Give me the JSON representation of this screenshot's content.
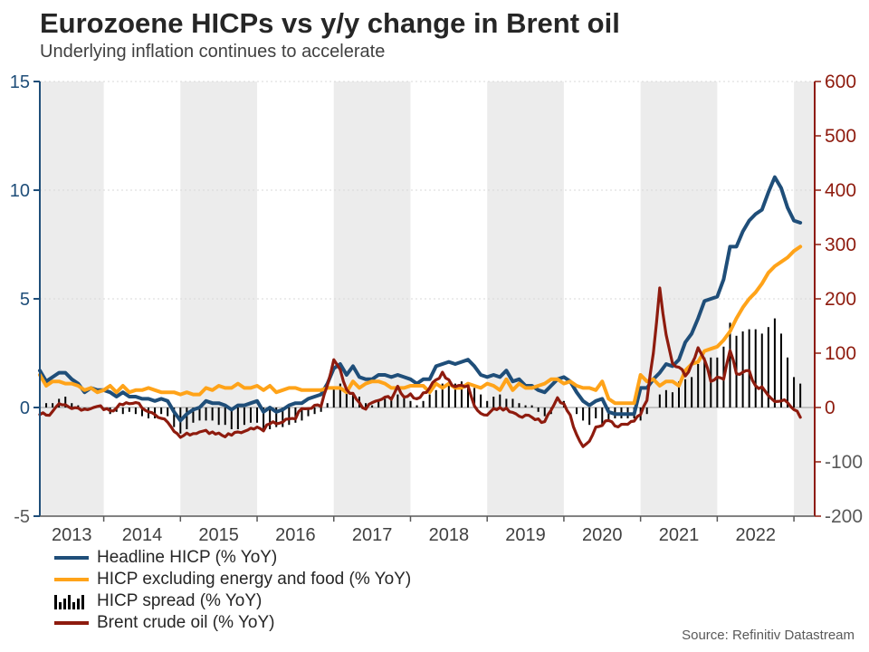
{
  "header": {
    "title": "Eurozoene HICPs vs y/y change in Brent oil",
    "subtitle": "Underlying inflation continues to accelerate"
  },
  "footer": {
    "source": "Source: Refinitiv Datastream"
  },
  "style": {
    "headline_blue": "#1F4E79",
    "core_orange": "#FFA319",
    "spread_black": "#000000",
    "brent_red": "#8E1B0E",
    "band_color": "#ECECEC",
    "grid_color": "#D9D9D9",
    "zero_line_color": "#999999",
    "x_axis_color": "#595959",
    "negative_label_color": "#595959",
    "year_label_color": "#404040"
  },
  "left_axis": {
    "ticks": [
      15,
      10,
      5,
      0,
      -5
    ],
    "color": "#1F4E79"
  },
  "right_axis": {
    "ticks": [
      600,
      500,
      400,
      300,
      200,
      100,
      0,
      -100,
      -200
    ],
    "color": "#8E1B0E"
  },
  "x_axis": {
    "year_labels": [
      "2013",
      "2014",
      "2015",
      "2016",
      "2017",
      "2018",
      "2019",
      "2020",
      "2021",
      "2022"
    ],
    "gray_band_years": [
      2013,
      2015,
      2017,
      2019,
      2021,
      2023
    ]
  },
  "legend": {
    "items": [
      {
        "type": "line",
        "color": "#1F4E79",
        "label": "Headline HICP (% YoY)"
      },
      {
        "type": "line",
        "color": "#FFA319",
        "label": "HICP excluding energy and food (% YoY)"
      },
      {
        "type": "bars",
        "color": "#000000",
        "label": "HICP spread (% YoY)"
      },
      {
        "type": "line",
        "color": "#8E1B0E",
        "label": "Brent crude oil (% YoY)"
      }
    ]
  },
  "chart_data": {
    "type": "line",
    "title": "Eurozoene HICPs vs y/y change in Brent oil",
    "x_unit": "month",
    "x_start": "2013-03",
    "x_end": "2023-02",
    "left_axis_range": [
      -5,
      15
    ],
    "right_axis_range": [
      -200,
      600
    ],
    "grid_left_values": [
      5,
      10,
      15
    ],
    "series": [
      {
        "name": "Headline HICP (% YoY)",
        "axis": "left",
        "type": "line",
        "color": "#1F4E79",
        "values": [
          1.7,
          1.2,
          1.4,
          1.6,
          1.6,
          1.3,
          1.1,
          0.7,
          0.9,
          0.8,
          0.8,
          0.7,
          0.5,
          0.7,
          0.5,
          0.5,
          0.4,
          0.4,
          0.3,
          0.4,
          0.3,
          -0.2,
          -0.6,
          -0.3,
          -0.1,
          0.0,
          0.3,
          0.2,
          0.2,
          0.1,
          -0.1,
          0.1,
          0.1,
          0.2,
          0.3,
          -0.2,
          0.0,
          -0.2,
          -0.1,
          0.1,
          0.2,
          0.2,
          0.4,
          0.5,
          0.6,
          1.1,
          1.8,
          2.0,
          1.5,
          1.9,
          1.4,
          1.3,
          1.3,
          1.5,
          1.5,
          1.4,
          1.5,
          1.4,
          1.3,
          1.1,
          1.3,
          1.3,
          1.9,
          2.0,
          2.1,
          2.0,
          2.1,
          2.2,
          1.9,
          1.5,
          1.4,
          1.5,
          1.4,
          1.7,
          1.2,
          1.3,
          1.0,
          1.0,
          0.8,
          0.7,
          1.0,
          1.3,
          1.4,
          1.2,
          0.7,
          0.3,
          0.1,
          0.3,
          0.4,
          -0.2,
          -0.3,
          -0.3,
          -0.3,
          -0.3,
          0.9,
          0.9,
          1.3,
          1.6,
          2.0,
          1.9,
          2.2,
          3.0,
          3.4,
          4.1,
          4.9,
          5.0,
          5.1,
          5.9,
          7.4,
          7.4,
          8.1,
          8.6,
          8.9,
          9.1,
          9.9,
          10.6,
          10.1,
          9.2,
          8.6,
          8.5
        ]
      },
      {
        "name": "HICP excluding energy and food (% YoY)",
        "axis": "left",
        "type": "line",
        "color": "#FFA319",
        "values": [
          1.5,
          1.0,
          1.2,
          1.2,
          1.1,
          1.1,
          1.0,
          0.8,
          0.9,
          0.7,
          0.8,
          1.0,
          0.7,
          1.0,
          0.7,
          0.8,
          0.8,
          0.9,
          0.8,
          0.7,
          0.7,
          0.7,
          0.6,
          0.7,
          0.6,
          0.6,
          0.9,
          0.8,
          1.0,
          0.9,
          0.9,
          1.1,
          0.9,
          0.9,
          1.0,
          0.8,
          1.0,
          0.7,
          0.8,
          0.9,
          0.9,
          0.8,
          0.8,
          0.8,
          0.8,
          0.9,
          0.9,
          0.9,
          0.7,
          1.2,
          0.9,
          1.1,
          1.2,
          1.2,
          1.1,
          0.9,
          0.9,
          0.9,
          1.0,
          1.0,
          1.0,
          0.7,
          1.1,
          0.9,
          1.1,
          0.9,
          0.9,
          1.1,
          1.0,
          0.9,
          1.1,
          1.0,
          0.8,
          1.3,
          0.8,
          1.1,
          0.9,
          0.9,
          1.0,
          1.1,
          1.3,
          1.3,
          1.1,
          1.2,
          1.0,
          0.9,
          0.9,
          0.8,
          1.2,
          0.4,
          0.2,
          0.2,
          0.2,
          0.2,
          1.5,
          1.2,
          1.3,
          1.0,
          1.2,
          1.2,
          1.0,
          1.7,
          2.0,
          2.1,
          2.6,
          2.7,
          2.8,
          3.1,
          3.5,
          4.1,
          4.6,
          5.0,
          5.3,
          5.7,
          6.2,
          6.5,
          6.7,
          6.9,
          7.2,
          7.4
        ]
      },
      {
        "name": "HICP spread (% YoY)",
        "axis": "left",
        "type": "bar",
        "color": "#000000",
        "values": [
          0.2,
          0.2,
          0.2,
          0.4,
          0.5,
          0.2,
          0.1,
          -0.1,
          0.0,
          0.1,
          0.0,
          -0.3,
          -0.2,
          -0.3,
          -0.2,
          -0.3,
          -0.4,
          -0.5,
          -0.5,
          -0.3,
          -0.4,
          -0.9,
          -1.2,
          -1.0,
          -0.7,
          -0.6,
          -0.6,
          -0.6,
          -0.8,
          -0.8,
          -1.0,
          -1.0,
          -0.8,
          -0.7,
          -0.7,
          -1.0,
          -1.0,
          -0.9,
          -0.9,
          -0.8,
          -0.7,
          -0.6,
          -0.4,
          -0.3,
          -0.2,
          0.2,
          0.9,
          1.1,
          0.8,
          0.7,
          0.5,
          0.2,
          0.1,
          0.3,
          0.4,
          0.5,
          0.6,
          0.5,
          0.3,
          0.1,
          0.3,
          0.6,
          0.8,
          1.1,
          1.0,
          1.1,
          1.2,
          1.1,
          0.9,
          0.6,
          0.3,
          0.5,
          0.6,
          0.4,
          0.4,
          0.2,
          0.1,
          0.1,
          -0.2,
          -0.4,
          -0.3,
          0.0,
          0.3,
          0.0,
          -0.3,
          -0.6,
          -0.8,
          -0.5,
          -0.8,
          -0.6,
          -0.5,
          -0.5,
          -0.5,
          -0.5,
          -0.6,
          -0.3,
          0.0,
          0.6,
          0.8,
          0.7,
          1.2,
          1.3,
          1.4,
          2.0,
          2.3,
          2.3,
          2.3,
          2.8,
          3.9,
          3.3,
          3.5,
          3.6,
          3.6,
          3.4,
          3.7,
          4.1,
          3.4,
          2.3,
          1.4,
          1.1
        ]
      },
      {
        "name": "Brent crude oil (% YoY)",
        "axis": "right",
        "type": "line",
        "color": "#8E1B0E",
        "values": [
          -13,
          -14,
          -7,
          7,
          5,
          -2,
          -1,
          -3,
          -2,
          2,
          -4,
          -6,
          -1,
          5,
          7,
          9,
          -1,
          -8,
          -13,
          -20,
          -27,
          -44,
          -55,
          -47,
          -48,
          -45,
          -42,
          -45,
          -47,
          -54,
          -51,
          -45,
          -44,
          -38,
          -36,
          -43,
          -30,
          -30,
          -27,
          -21,
          -21,
          -2,
          -2,
          4,
          2,
          41,
          88,
          70,
          33,
          26,
          9,
          -3,
          9,
          13,
          19,
          15,
          39,
          19,
          25,
          16,
          27,
          36,
          51,
          65,
          51,
          38,
          41,
          40,
          3,
          -11,
          -14,
          -2,
          0,
          -1,
          -9,
          -16,
          -14,
          -18,
          -21,
          -26,
          -5,
          18,
          7,
          -14,
          -50,
          -72,
          -62,
          -36,
          -33,
          -24,
          -34,
          -31,
          -31,
          -25,
          -13,
          13,
          100,
          220,
          134,
          81,
          74,
          58,
          80,
          110,
          88,
          48,
          56,
          52,
          105,
          62,
          65,
          68,
          40,
          38,
          22,
          11,
          12,
          9,
          -4,
          -18
        ]
      }
    ]
  }
}
